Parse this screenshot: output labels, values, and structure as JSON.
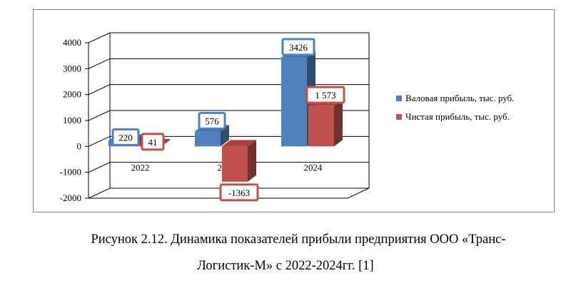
{
  "chart_data": {
    "type": "bar",
    "title": "",
    "xlabel": "",
    "ylabel": "",
    "ylim": [
      -2000,
      4000
    ],
    "yticks": [
      4000,
      3000,
      2000,
      1000,
      0,
      -1000,
      -2000
    ],
    "categories": [
      "2022",
      "2023",
      "2024"
    ],
    "series": [
      {
        "name": "Валовая прибыль, тыс. руб.",
        "values": [
          220,
          576,
          3426
        ],
        "labels": [
          "220",
          "576",
          "3426"
        ],
        "color": "#4f81bd"
      },
      {
        "name": "Чистая прибыль, тыс. руб.",
        "values": [
          41,
          -1363,
          1573
        ],
        "labels": [
          "41",
          "-1363",
          "1 573"
        ],
        "color": "#c0504d"
      }
    ],
    "grid": true,
    "legend_position": "right",
    "style": "3d-clustered-column"
  },
  "caption": {
    "line1": "Рисунок 2.12. Динамика показателей прибыли предприятия ООО «Транс-",
    "line2": "Логистик-М» с 2022-2024гг. [1]"
  }
}
